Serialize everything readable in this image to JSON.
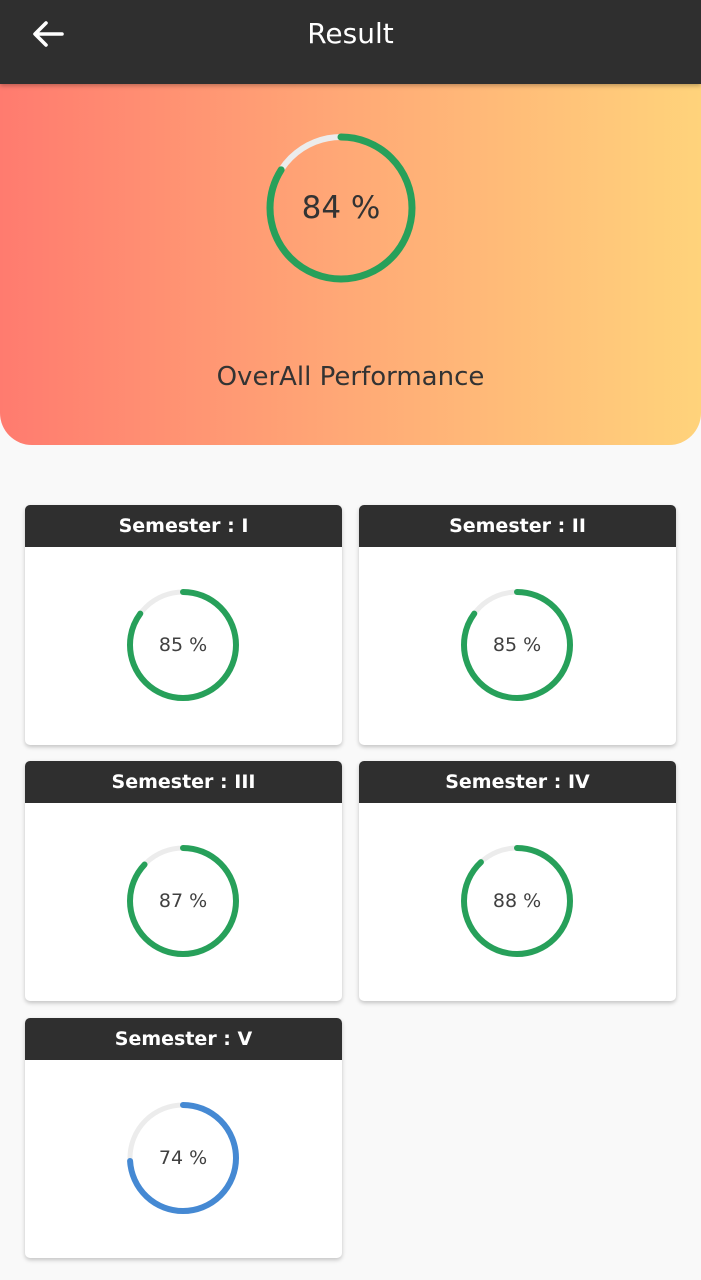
{
  "app_bar": {
    "title": "Result",
    "back_icon": "arrow-left-icon"
  },
  "overall": {
    "percent": 84,
    "label": "84 %",
    "caption": "OverAll Performance",
    "color": "#27a05a"
  },
  "semesters": [
    {
      "title": "Semester : I",
      "percent": 85,
      "label": "85 %",
      "color": "#27a05a"
    },
    {
      "title": "Semester : II",
      "percent": 85,
      "label": "85 %",
      "color": "#27a05a"
    },
    {
      "title": "Semester : III",
      "percent": 87,
      "label": "87 %",
      "color": "#27a05a"
    },
    {
      "title": "Semester : IV",
      "percent": 88,
      "label": "88 %",
      "color": "#27a05a"
    },
    {
      "title": "Semester : V",
      "percent": 74,
      "label": "74 %",
      "color": "#4589d3"
    }
  ],
  "colors": {
    "app_bar": "#2f2f2f",
    "track": "#ececec",
    "gradient_start": "#ff7b6f",
    "gradient_end": "#ffd37b"
  }
}
